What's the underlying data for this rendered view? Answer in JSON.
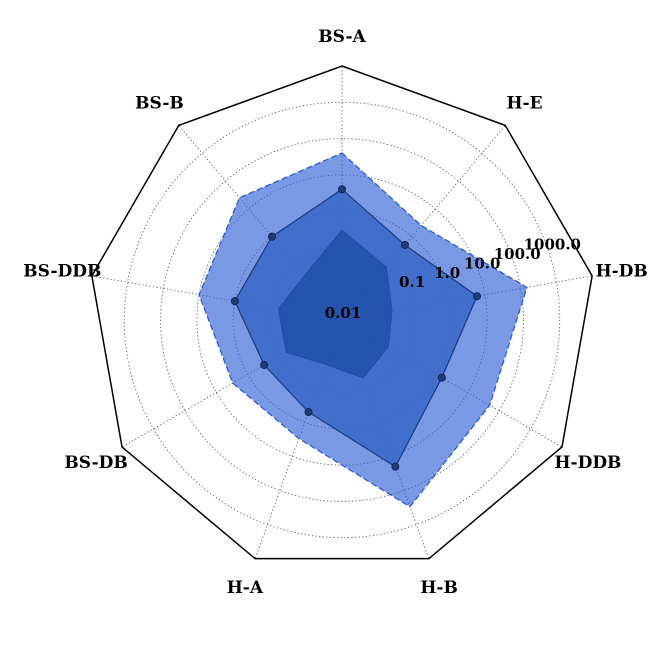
{
  "chart_data": {
    "type": "radar",
    "scale": "log",
    "rlim": [
      0.001,
      10000
    ],
    "ring_values": [
      0.01,
      0.1,
      1.0,
      10.0,
      100.0,
      1000.0
    ],
    "ring_labels": [
      "0.01",
      "0.1",
      "1.0",
      "10.0",
      "100.0",
      "1000.0"
    ],
    "categories": [
      "BS-A",
      "H-E",
      "H-DB",
      "H-DDB",
      "H-B",
      "H-A",
      "BS-DB",
      "BS-DDB",
      "BS-B"
    ],
    "grid": true,
    "series": [
      {
        "role": "upper-band",
        "values": [
          40,
          2.5,
          150,
          50,
          300,
          3,
          3,
          10,
          25
        ]
      },
      {
        "role": "median-markers",
        "values": [
          4,
          0.5,
          6,
          1.5,
          20,
          0.5,
          0.3,
          1,
          1
        ]
      },
      {
        "role": "lower-band",
        "values": [
          0.3,
          0.08,
          0.025,
          0.03,
          0.05,
          0.02,
          0.06,
          0.06,
          0.04
        ]
      }
    ],
    "colors": {
      "band": "#2f5fd4",
      "median_fill": "#3c6ac8",
      "median_line": "#1d3f86",
      "marker": "#1e3d78",
      "inner_fill": "#1e4ea8"
    }
  }
}
